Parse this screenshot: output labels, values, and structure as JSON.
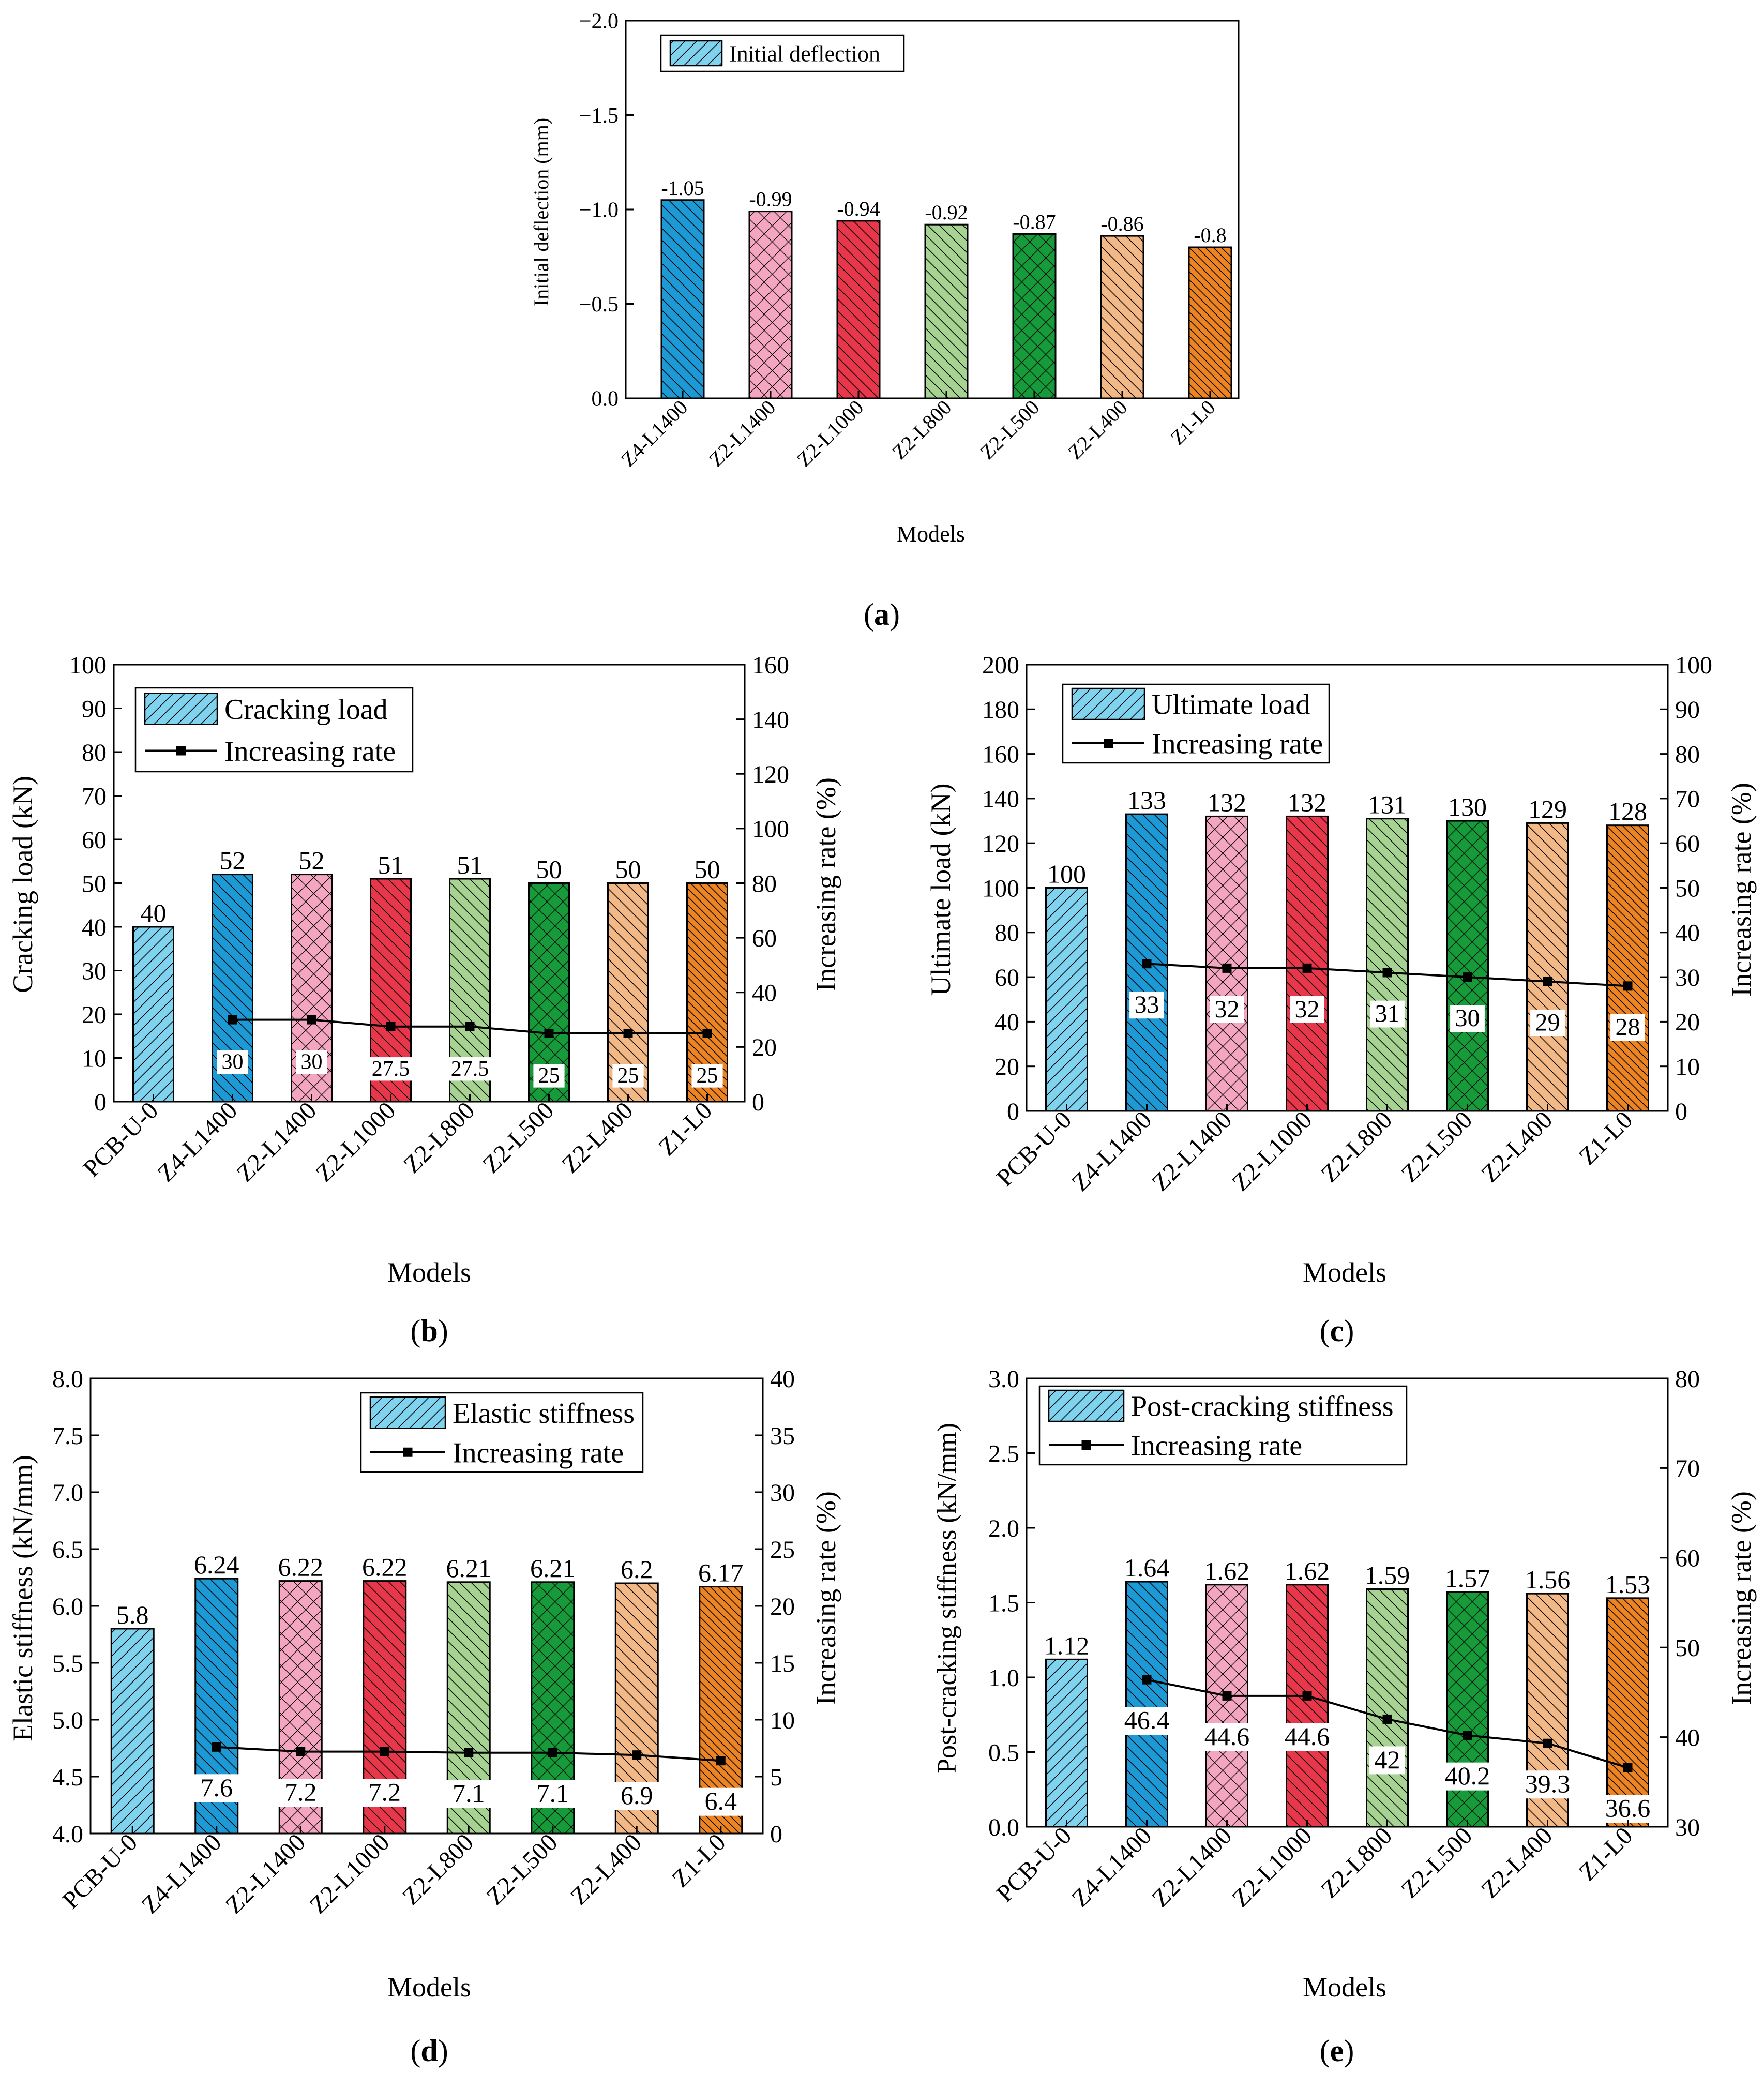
{
  "chart_data": [
    {
      "id": "a",
      "panel_label": "a",
      "type": "bar",
      "categories": [
        "Z4-L1400",
        "Z2-L1400",
        "Z2-L1000",
        "Z2-L800",
        "Z2-L500",
        "Z2-L400",
        "Z1-L0"
      ],
      "values": [
        -1.05,
        -0.99,
        -0.94,
        -0.92,
        -0.87,
        -0.86,
        -0.8
      ],
      "value_labels": [
        "-1.05",
        "-0.99",
        "-0.94",
        "-0.92",
        "-0.87",
        "-0.86",
        "-0.8"
      ],
      "ylabel": "Initial deflection (mm)",
      "xlabel": "Models",
      "ylim": [
        0,
        -2.0
      ],
      "y_ticks": [
        0,
        -0.5,
        -1.0,
        -1.5,
        -2.0
      ],
      "y_tick_labels": [
        "0.0",
        "−0.5",
        "−1.0",
        "−1.5",
        "−2.0"
      ],
      "legend": [
        "Initial deflection"
      ],
      "legend_position": "top-left"
    },
    {
      "id": "b",
      "panel_label": "b",
      "type": "bar",
      "categories": [
        "PCB-U-0",
        "Z4-L1400",
        "Z2-L1400",
        "Z2-L1000",
        "Z2-L800",
        "Z2-L500",
        "Z2-L400",
        "Z1-L0"
      ],
      "values": [
        40,
        52,
        52,
        51,
        51,
        50,
        50,
        50
      ],
      "value_labels": [
        "40",
        "52",
        "52",
        "51",
        "51",
        "50",
        "50",
        "50"
      ],
      "rate": [
        null,
        30,
        30,
        27.5,
        27.5,
        25,
        25,
        25
      ],
      "rate_labels": [
        "",
        "30",
        "30",
        "27.5",
        "27.5",
        "25",
        "25",
        "25"
      ],
      "ylabel": "Cracking load (kN)",
      "y2label": "Increasing rate (%)",
      "xlabel": "Models",
      "ylim": [
        0,
        100
      ],
      "y_ticks": [
        0,
        10,
        20,
        30,
        40,
        50,
        60,
        70,
        80,
        90,
        100
      ],
      "y2lim": [
        0,
        160
      ],
      "y2_ticks": [
        0,
        20,
        40,
        60,
        80,
        100,
        120,
        140,
        160
      ],
      "legend": [
        "Cracking load",
        "Increasing rate"
      ],
      "legend_position": "top-left"
    },
    {
      "id": "c",
      "panel_label": "c",
      "type": "bar",
      "categories": [
        "PCB-U-0",
        "Z4-L1400",
        "Z2-L1400",
        "Z2-L1000",
        "Z2-L800",
        "Z2-L500",
        "Z2-L400",
        "Z1-L0"
      ],
      "values": [
        100,
        133,
        132,
        132,
        131,
        130,
        129,
        128
      ],
      "value_labels": [
        "100",
        "133",
        "132",
        "132",
        "131",
        "130",
        "129",
        "128"
      ],
      "rate": [
        null,
        33,
        32,
        32,
        31,
        30,
        29,
        28
      ],
      "rate_labels": [
        "",
        "33",
        "32",
        "32",
        "31",
        "30",
        "29",
        "28"
      ],
      "ylabel": "Ultimate load (kN)",
      "y2label": "Increasing rate (%)",
      "xlabel": "Models",
      "ylim": [
        0,
        200
      ],
      "y_ticks": [
        0,
        20,
        40,
        60,
        80,
        100,
        120,
        140,
        160,
        180,
        200
      ],
      "y2lim": [
        0,
        100
      ],
      "y2_ticks": [
        0,
        10,
        20,
        30,
        40,
        50,
        60,
        70,
        80,
        90,
        100
      ],
      "legend": [
        "Ultimate load",
        "Increasing rate"
      ],
      "legend_position": "top-left"
    },
    {
      "id": "d",
      "panel_label": "d",
      "type": "bar",
      "categories": [
        "PCB-U-0",
        "Z4-L1400",
        "Z2-L1400",
        "Z2-L1000",
        "Z2-L800",
        "Z2-L500",
        "Z2-L400",
        "Z1-L0"
      ],
      "values": [
        5.8,
        6.24,
        6.22,
        6.22,
        6.21,
        6.21,
        6.2,
        6.17
      ],
      "value_labels": [
        "5.8",
        "6.24",
        "6.22",
        "6.22",
        "6.21",
        "6.21",
        "6.2",
        "6.17"
      ],
      "rate": [
        null,
        7.6,
        7.2,
        7.2,
        7.1,
        7.1,
        6.9,
        6.4
      ],
      "rate_labels": [
        "",
        "7.6",
        "7.2",
        "7.2",
        "7.1",
        "7.1",
        "6.9",
        "6.4"
      ],
      "ylabel": "Elastic stiffness (kN/mm)",
      "y2label": "Increasing rate (%)",
      "xlabel": "Models",
      "ylim": [
        4.0,
        8.0
      ],
      "y_ticks": [
        4.0,
        4.5,
        5.0,
        5.5,
        6.0,
        6.5,
        7.0,
        7.5,
        8.0
      ],
      "y2lim": [
        0,
        40
      ],
      "y2_ticks": [
        0,
        5,
        10,
        15,
        20,
        25,
        30,
        35,
        40
      ],
      "legend": [
        "Elastic stiffness",
        "Increasing rate"
      ],
      "legend_position": "top-right"
    },
    {
      "id": "e",
      "panel_label": "e",
      "type": "bar",
      "categories": [
        "PCB-U-0",
        "Z4-L1400",
        "Z2-L1400",
        "Z2-L1000",
        "Z2-L800",
        "Z2-L500",
        "Z2-L400",
        "Z1-L0"
      ],
      "values": [
        1.12,
        1.64,
        1.62,
        1.62,
        1.59,
        1.57,
        1.56,
        1.53
      ],
      "value_labels": [
        "1.12",
        "1.64",
        "1.62",
        "1.62",
        "1.59",
        "1.57",
        "1.56",
        "1.53"
      ],
      "rate": [
        null,
        46.4,
        44.6,
        44.6,
        42,
        40.2,
        39.3,
        36.6
      ],
      "rate_labels": [
        "",
        "46.4",
        "44.6",
        "44.6",
        "42",
        "40.2",
        "39.3",
        "36.6"
      ],
      "ylabel": "Post-cracking stiffness (kN/mm)",
      "y2label": "Increasing rate (%)",
      "xlabel": "Models",
      "ylim": [
        0,
        3.0
      ],
      "y_ticks": [
        0,
        0.5,
        1.0,
        1.5,
        2.0,
        2.5,
        3.0
      ],
      "y2lim": [
        30,
        80
      ],
      "y2_ticks": [
        30,
        40,
        50,
        60,
        70,
        80
      ],
      "legend": [
        "Post-cracking stiffness",
        "Increasing rate"
      ],
      "legend_position": "top-left"
    }
  ],
  "model_colors": {
    "PCB-U-0": "#7fd3ee",
    "Z4-L1400": "#1d9ad6",
    "Z2-L1400": "#f4a6c1",
    "Z2-L1000": "#e8374a",
    "Z2-L800": "#a7d392",
    "Z2-L500": "#179a3a",
    "Z2-L400": "#f2b886",
    "Z1-L0": "#ec8424"
  },
  "legend_swatch_color": "#7fd3ee",
  "line_color": "#000000"
}
